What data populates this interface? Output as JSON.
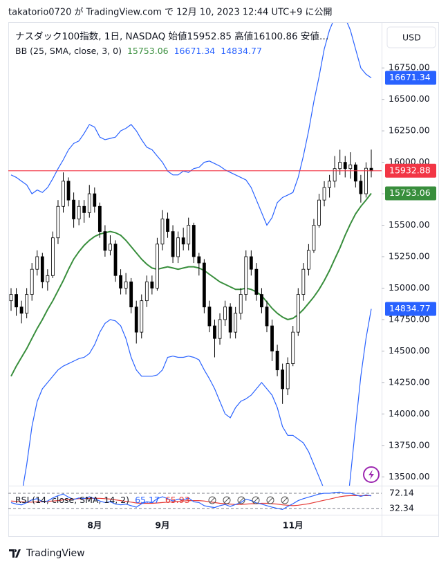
{
  "header": {
    "publisher": "takatorio0720 が TradingView.com で 12月 10, 2023 12:44 UTC+9 に公開"
  },
  "footer": {
    "brand": "TradingView"
  },
  "chart_data": {
    "type": "candlestick",
    "title": "ナスダック100指数, 1日, NASDAQ  始値15952.85  高値16100.86  安値…",
    "currency": "USD",
    "up_color": "#ffffff",
    "down_color": "#000000",
    "wick_color": "#000000",
    "last_price_color": "#f23645",
    "categories": [
      null,
      null,
      null,
      null,
      null,
      null,
      null,
      null,
      null,
      null,
      null,
      null,
      null,
      null,
      null,
      null,
      "8月",
      null,
      null,
      null,
      null,
      null,
      null,
      null,
      null,
      null,
      null,
      null,
      null,
      "9月",
      null,
      null,
      null,
      null,
      null,
      null,
      null,
      null,
      null,
      null,
      null,
      null,
      null,
      null,
      null,
      null,
      null,
      null,
      null,
      null,
      null,
      null,
      null,
      null,
      "11月",
      null,
      null,
      null,
      null,
      null,
      null,
      null,
      null,
      null,
      null,
      null,
      null,
      null,
      null,
      null
    ],
    "candles": [
      [
        14900,
        15000,
        14820,
        14950
      ],
      [
        14950,
        15000,
        14780,
        14850
      ],
      [
        14850,
        14900,
        14720,
        14800
      ],
      [
        14800,
        15000,
        14760,
        14950
      ],
      [
        14950,
        15200,
        14900,
        15150
      ],
      [
        15150,
        15300,
        15100,
        15250
      ],
      [
        15250,
        15280,
        15000,
        15050
      ],
      [
        15050,
        15150,
        14980,
        15100
      ],
      [
        15100,
        15450,
        15080,
        15400
      ],
      [
        15400,
        15700,
        15350,
        15650
      ],
      [
        15650,
        15920,
        15600,
        15850
      ],
      [
        15850,
        15880,
        15650,
        15700
      ],
      [
        15700,
        15760,
        15480,
        15550
      ],
      [
        15550,
        15700,
        15500,
        15650
      ],
      [
        15650,
        15700,
        15520,
        15600
      ],
      [
        15600,
        15820,
        15560,
        15750
      ],
      [
        15750,
        15800,
        15600,
        15650
      ],
      [
        15650,
        15680,
        15400,
        15450
      ],
      [
        15450,
        15500,
        15250,
        15300
      ],
      [
        15300,
        15420,
        15260,
        15350
      ],
      [
        15350,
        15380,
        15050,
        15100
      ],
      [
        15100,
        15150,
        14950,
        15000
      ],
      [
        15000,
        15120,
        14950,
        15050
      ],
      [
        15050,
        15080,
        14800,
        14850
      ],
      [
        14850,
        14900,
        14560,
        14650
      ],
      [
        14650,
        14950,
        14600,
        14900
      ],
      [
        14900,
        15100,
        14850,
        15050
      ],
      [
        15050,
        15100,
        14950,
        15000
      ],
      [
        15000,
        15400,
        14980,
        15350
      ],
      [
        15350,
        15620,
        15300,
        15550
      ],
      [
        15550,
        15600,
        15400,
        15450
      ],
      [
        15450,
        15500,
        15200,
        15250
      ],
      [
        15250,
        15450,
        15200,
        15400
      ],
      [
        15400,
        15480,
        15300,
        15350
      ],
      [
        15350,
        15560,
        15300,
        15500
      ],
      [
        15500,
        15520,
        15200,
        15250
      ],
      [
        15250,
        15280,
        15100,
        15200
      ],
      [
        15200,
        15230,
        14800,
        14850
      ],
      [
        14850,
        14900,
        14650,
        14700
      ],
      [
        14700,
        14750,
        14450,
        14600
      ],
      [
        14600,
        14800,
        14550,
        14750
      ],
      [
        14750,
        14900,
        14700,
        14850
      ],
      [
        14850,
        14880,
        14600,
        14650
      ],
      [
        14650,
        14850,
        14600,
        14800
      ],
      [
        14800,
        15000,
        14750,
        14950
      ],
      [
        14950,
        15300,
        14900,
        15250
      ],
      [
        15250,
        15300,
        15100,
        15150
      ],
      [
        15150,
        15200,
        14900,
        14950
      ],
      [
        14950,
        15000,
        14800,
        14850
      ],
      [
        14850,
        14900,
        14650,
        14700
      ],
      [
        14700,
        14750,
        14420,
        14500
      ],
      [
        14500,
        14550,
        14300,
        14350
      ],
      [
        14350,
        14400,
        14080,
        14200
      ],
      [
        14200,
        14450,
        14150,
        14400
      ],
      [
        14400,
        14700,
        14380,
        14650
      ],
      [
        14650,
        15000,
        14620,
        14950
      ],
      [
        14950,
        15200,
        14900,
        15150
      ],
      [
        15150,
        15350,
        15100,
        15300
      ],
      [
        15300,
        15550,
        15280,
        15500
      ],
      [
        15500,
        15750,
        15480,
        15700
      ],
      [
        15700,
        15850,
        15650,
        15800
      ],
      [
        15800,
        15900,
        15720,
        15850
      ],
      [
        15850,
        16050,
        15800,
        15950
      ],
      [
        15950,
        16100,
        15900,
        16000
      ],
      [
        16000,
        16050,
        15880,
        15950
      ],
      [
        15950,
        16080,
        15870,
        15980
      ],
      [
        15980,
        16000,
        15800,
        15850
      ],
      [
        15850,
        15900,
        15680,
        15750
      ],
      [
        15750,
        16000,
        15720,
        15952.85
      ],
      [
        15952.85,
        16100.86,
        15880,
        15932.88
      ]
    ],
    "bb": {
      "label": "BB (25, SMA, close, 3, 0)",
      "basis_color": "#388e3c",
      "band_color": "#2962ff",
      "basis": [
        14300,
        14380,
        14450,
        14520,
        14600,
        14680,
        14750,
        14830,
        14900,
        14980,
        15060,
        15150,
        15230,
        15290,
        15340,
        15380,
        15410,
        15430,
        15440,
        15450,
        15440,
        15420,
        15380,
        15330,
        15280,
        15230,
        15190,
        15160,
        15150,
        15160,
        15170,
        15160,
        15150,
        15160,
        15170,
        15170,
        15160,
        15140,
        15110,
        15080,
        15050,
        15030,
        15010,
        14990,
        14990,
        15000,
        14990,
        14970,
        14940,
        14890,
        14840,
        14800,
        14770,
        14750,
        14760,
        14790,
        14830,
        14880,
        14930,
        14990,
        15060,
        15140,
        15230,
        15320,
        15420,
        15510,
        15590,
        15650,
        15700,
        15753.06
      ],
      "upper": [
        15900,
        15880,
        15850,
        15820,
        15750,
        15780,
        15760,
        15800,
        15870,
        15950,
        16020,
        16100,
        16150,
        16170,
        16230,
        16300,
        16280,
        16200,
        16180,
        16190,
        16200,
        16250,
        16270,
        16300,
        16250,
        16180,
        16120,
        16100,
        16050,
        16000,
        15930,
        15900,
        15900,
        15930,
        15920,
        15950,
        15960,
        16000,
        16010,
        15990,
        15970,
        15940,
        15920,
        15900,
        15880,
        15860,
        15800,
        15700,
        15600,
        15500,
        15560,
        15680,
        15720,
        15740,
        15760,
        15880,
        16050,
        16250,
        16480,
        16680,
        16900,
        17050,
        17150,
        17200,
        17150,
        17050,
        16900,
        16750,
        16700,
        16671.34
      ],
      "lower": [
        13100,
        13200,
        13350,
        13600,
        13900,
        14100,
        14200,
        14250,
        14300,
        14350,
        14380,
        14400,
        14420,
        14440,
        14450,
        14480,
        14550,
        14650,
        14720,
        14750,
        14740,
        14700,
        14600,
        14450,
        14350,
        14300,
        14300,
        14300,
        14310,
        14350,
        14450,
        14460,
        14450,
        14450,
        14460,
        14450,
        14430,
        14350,
        14280,
        14200,
        14100,
        14000,
        13970,
        14050,
        14100,
        14120,
        14150,
        14200,
        14250,
        14200,
        14150,
        14050,
        13900,
        13830,
        13830,
        13800,
        13770,
        13700,
        13600,
        13500,
        13400,
        13300,
        13150,
        13000,
        13100,
        13500,
        13900,
        14300,
        14600,
        14834.77
      ]
    },
    "ylim": [
      13430,
      17125
    ],
    "yticks": [
      {
        "value": 13500,
        "label": "13500.00"
      },
      {
        "value": 13750,
        "label": "13750.00"
      },
      {
        "value": 14000,
        "label": "14000.00"
      },
      {
        "value": 14250,
        "label": "14250.00"
      },
      {
        "value": 14500,
        "label": "14500.00"
      },
      {
        "value": 14750,
        "label": "14750.00"
      },
      {
        "value": 15000,
        "label": "15000.00"
      },
      {
        "value": 15250,
        "label": "15250.00"
      },
      {
        "value": 15500,
        "label": "15500.00"
      },
      {
        "value": 15750,
        "label": "15750.00"
      },
      {
        "value": 16000,
        "label": "16000.00"
      },
      {
        "value": 16250,
        "label": "16250.00"
      },
      {
        "value": 16500,
        "label": "16500.00"
      },
      {
        "value": 16750,
        "label": "16750.00"
      }
    ],
    "rsi": {
      "label": "RSI (14, close, SMA, 14, 2)",
      "color": "#2962ff",
      "ma_color": "#e53935",
      "ylim": [
        20,
        90
      ],
      "yticks": [
        72.14,
        32.34
      ],
      "values": [
        48,
        44,
        42,
        48,
        55,
        58,
        50,
        52,
        60,
        66,
        70,
        62,
        56,
        60,
        58,
        63,
        58,
        52,
        48,
        50,
        44,
        42,
        44,
        40,
        36,
        45,
        50,
        48,
        58,
        63,
        58,
        52,
        57,
        55,
        60,
        50,
        48,
        40,
        37,
        35,
        40,
        43,
        38,
        43,
        48,
        57,
        53,
        47,
        44,
        40,
        36,
        33,
        30,
        38,
        45,
        53,
        58,
        62,
        66,
        70,
        72,
        72,
        74,
        75,
        72,
        72,
        68,
        64,
        68,
        65.17
      ],
      "ma": [
        52,
        51,
        50,
        49,
        49,
        50,
        50,
        51,
        52,
        53,
        55,
        56,
        57,
        58,
        58,
        59,
        59,
        59,
        58,
        57,
        55,
        53,
        51,
        49,
        47,
        46,
        46,
        46,
        47,
        48,
        49,
        50,
        51,
        52,
        53,
        53,
        53,
        52,
        50,
        48,
        46,
        45,
        44,
        43,
        43,
        44,
        45,
        45,
        46,
        46,
        45,
        44,
        42,
        41,
        40,
        41,
        43,
        45,
        48,
        51,
        54,
        57,
        60,
        63,
        65,
        66,
        66,
        66,
        66,
        65.93
      ]
    }
  }
}
